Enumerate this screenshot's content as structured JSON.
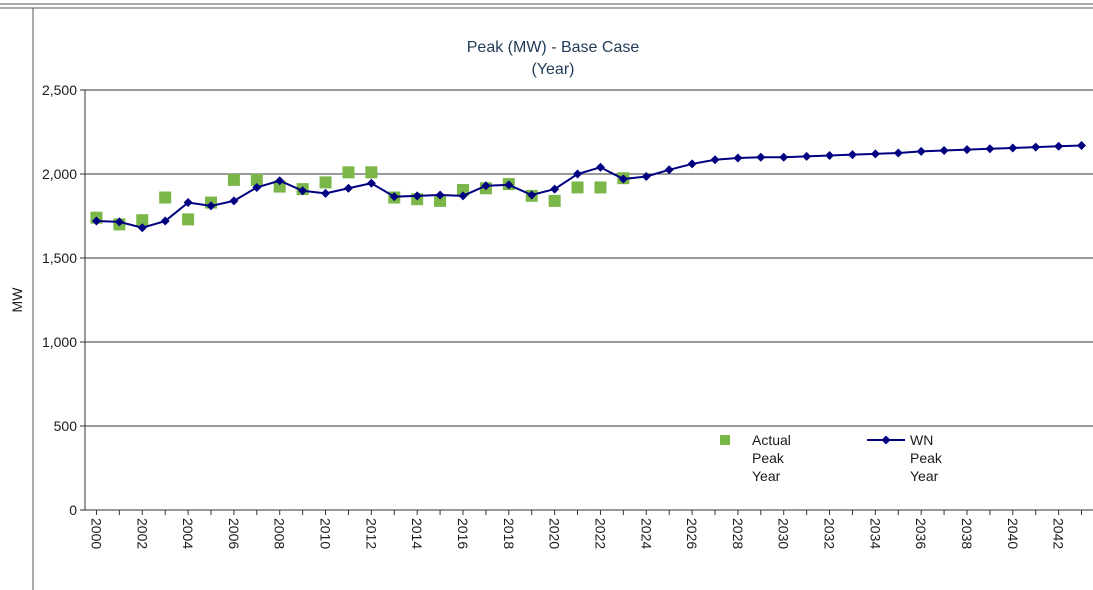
{
  "chart_data": {
    "type": "line",
    "title": "Peak (MW) - Base Case",
    "subtitle": "(Year)",
    "y_label": "MW",
    "x": [
      2000,
      2001,
      2002,
      2003,
      2004,
      2005,
      2006,
      2007,
      2008,
      2009,
      2010,
      2011,
      2012,
      2013,
      2014,
      2015,
      2016,
      2017,
      2018,
      2019,
      2020,
      2021,
      2022,
      2023,
      2024,
      2025,
      2026,
      2027,
      2028,
      2029,
      2030,
      2031,
      2032,
      2033,
      2034,
      2035,
      2036,
      2037,
      2038,
      2039,
      2040,
      2041,
      2042,
      2043
    ],
    "xlim": [
      1999.5,
      2043.5
    ],
    "xticks": [
      2000,
      2002,
      2004,
      2006,
      2008,
      2010,
      2012,
      2014,
      2016,
      2018,
      2020,
      2022,
      2024,
      2026,
      2028,
      2030,
      2032,
      2034,
      2036,
      2038,
      2040,
      2042
    ],
    "ylim": [
      0,
      2500
    ],
    "yticks": [
      0,
      {
        "value": 500,
        "label": "500"
      },
      {
        "value": 1000,
        "label": "1,000"
      },
      {
        "value": 1500,
        "label": "1,500"
      },
      {
        "value": 2000,
        "label": "2,000"
      },
      {
        "value": 2500,
        "label": "2,500"
      }
    ],
    "grid": true,
    "series": [
      {
        "name": "Actual Peak Year",
        "color": "#7ab648",
        "marker": "square",
        "line": false,
        "values": [
          1740,
          1700,
          1725,
          1860,
          1730,
          1830,
          1965,
          1965,
          1925,
          1910,
          1950,
          2010,
          2010,
          1860,
          1850,
          1840,
          1905,
          1915,
          1940,
          1870,
          1840,
          1920,
          1920,
          1975,
          null,
          null,
          null,
          null,
          null,
          null,
          null,
          null,
          null,
          null,
          null,
          null,
          null,
          null,
          null,
          null,
          null,
          null,
          null,
          null
        ]
      },
      {
        "name": "WN Peak Year",
        "color": "#000080",
        "marker": "diamond",
        "line": true,
        "values": [
          1720,
          1715,
          1680,
          1720,
          1830,
          1810,
          1840,
          1920,
          1960,
          1900,
          1885,
          1915,
          1945,
          1865,
          1870,
          1875,
          1870,
          1930,
          1935,
          1875,
          1910,
          2000,
          2040,
          1970,
          1985,
          2025,
          2060,
          2085,
          2095,
          2100,
          2100,
          2105,
          2110,
          2115,
          2120,
          2125,
          2135,
          2140,
          2145,
          2150,
          2155,
          2160,
          2165,
          2170
        ]
      }
    ]
  }
}
